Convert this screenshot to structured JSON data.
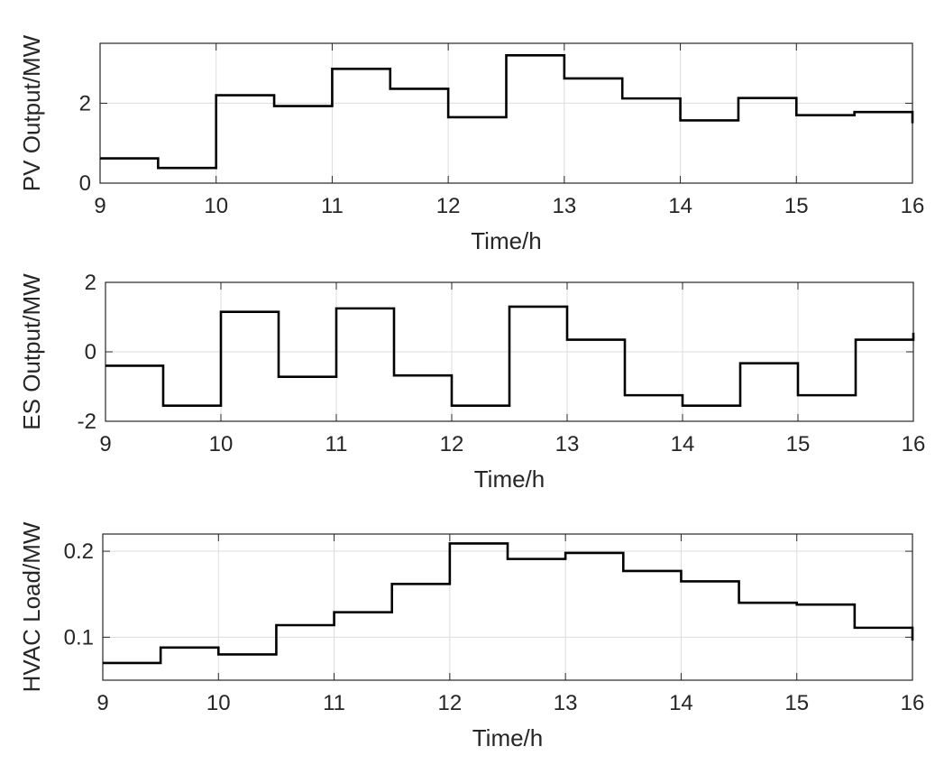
{
  "chart_data": [
    {
      "type": "line",
      "step": true,
      "x": [
        9,
        9.5,
        10,
        10.5,
        11,
        11.5,
        12,
        12.5,
        13,
        13.5,
        14,
        14.5,
        15,
        15.5,
        16
      ],
      "series": [
        {
          "values": [
            0.62,
            0.38,
            2.2,
            1.93,
            2.86,
            2.36,
            1.65,
            3.2,
            2.62,
            2.12,
            1.57,
            2.13,
            1.7,
            1.78,
            1.5
          ]
        }
      ],
      "xlabel": "Time/h",
      "ylabel": "PV Output/MW",
      "xlim": [
        9,
        16
      ],
      "ylim": [
        0,
        3.5
      ],
      "xticks": [
        9,
        10,
        11,
        12,
        13,
        14,
        15,
        16
      ],
      "yticks": [
        0,
        2
      ],
      "ytick_labels": [
        "0",
        "2"
      ],
      "grid": true
    },
    {
      "type": "line",
      "step": true,
      "x": [
        9,
        9.5,
        10,
        10.5,
        11,
        11.5,
        12,
        12.5,
        13,
        13.5,
        14,
        14.5,
        15,
        15.5,
        16
      ],
      "series": [
        {
          "values": [
            -0.4,
            -1.55,
            1.15,
            -0.72,
            1.25,
            -0.68,
            -1.55,
            1.3,
            0.35,
            -1.25,
            -1.55,
            -0.33,
            -1.25,
            0.35,
            0.55
          ]
        }
      ],
      "xlabel": "Time/h",
      "ylabel": "ES Output/MW",
      "xlim": [
        9,
        16
      ],
      "ylim": [
        -2,
        2
      ],
      "xticks": [
        9,
        10,
        11,
        12,
        13,
        14,
        15,
        16
      ],
      "yticks": [
        -2,
        0,
        2
      ],
      "ytick_labels": [
        "-2",
        "0",
        "2"
      ],
      "grid": true
    },
    {
      "type": "line",
      "step": true,
      "x": [
        9,
        9.5,
        10,
        10.5,
        11,
        11.5,
        12,
        12.5,
        13,
        13.5,
        14,
        14.5,
        15,
        15.5,
        16
      ],
      "series": [
        {
          "values": [
            0.07,
            0.088,
            0.08,
            0.114,
            0.129,
            0.162,
            0.209,
            0.191,
            0.198,
            0.177,
            0.165,
            0.14,
            0.138,
            0.111,
            0.096
          ]
        }
      ],
      "xlabel": "Time/h",
      "ylabel": "HVAC Load/MW",
      "xlim": [
        9,
        16
      ],
      "ylim": [
        0.05,
        0.22
      ],
      "xticks": [
        9,
        10,
        11,
        12,
        13,
        14,
        15,
        16
      ],
      "yticks": [
        0.1,
        0.2
      ],
      "ytick_labels": [
        "0.1",
        "0.2"
      ],
      "grid": true
    }
  ]
}
